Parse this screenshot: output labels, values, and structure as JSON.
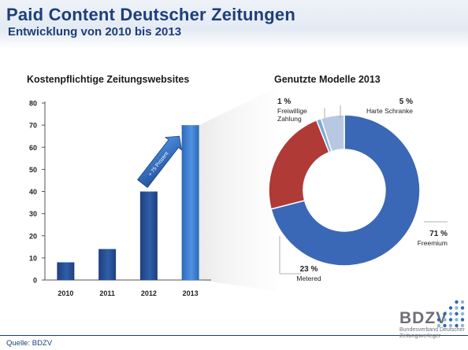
{
  "header": {
    "title": "Paid Content Deutscher Zeitungen",
    "subtitle": "Entwicklung von 2010 bis 2013"
  },
  "colors": {
    "title": "#1c3f7a",
    "bar_dark": "#1f3f7e",
    "bar_light": "#3f7fd1",
    "freemium": "#3a68b6",
    "metered": "#b03a36",
    "freiwillige": "#7aaad8",
    "harte": "#b9c8e2"
  },
  "chart_data": [
    {
      "type": "bar",
      "title": "Kostenpflichtige Zeitungswebsites",
      "categories": [
        "2010",
        "2011",
        "2012",
        "2013"
      ],
      "values": [
        8,
        14,
        40,
        70
      ],
      "ylim": [
        0,
        80
      ],
      "yticks": [
        "0",
        "10",
        "20",
        "30",
        "40",
        "50",
        "60",
        "70",
        "80"
      ],
      "xlabel": "",
      "ylabel": "",
      "grid": false,
      "annotation": "+ 75 Prozent"
    },
    {
      "type": "pie",
      "title": "Genutzte Modelle 2013",
      "donut": true,
      "slices": [
        {
          "label": "Freemium",
          "value": 71,
          "value_label": "71 %"
        },
        {
          "label": "Metered",
          "value": 23,
          "value_label": "23 %"
        },
        {
          "label": "Freiwillige Zahlung",
          "value": 1,
          "value_label": "1 %",
          "label_lines": [
            "Freiwillige",
            "Zahlung"
          ]
        },
        {
          "label": "Harte Schranke",
          "value": 5,
          "value_label": "5 %"
        }
      ]
    }
  ],
  "footer": {
    "source": "Quelle: BDZV",
    "logo_name": "BDZV",
    "logo_line1": "Bundesverband Deutscher",
    "logo_line2": "Zeitungsverleger"
  }
}
